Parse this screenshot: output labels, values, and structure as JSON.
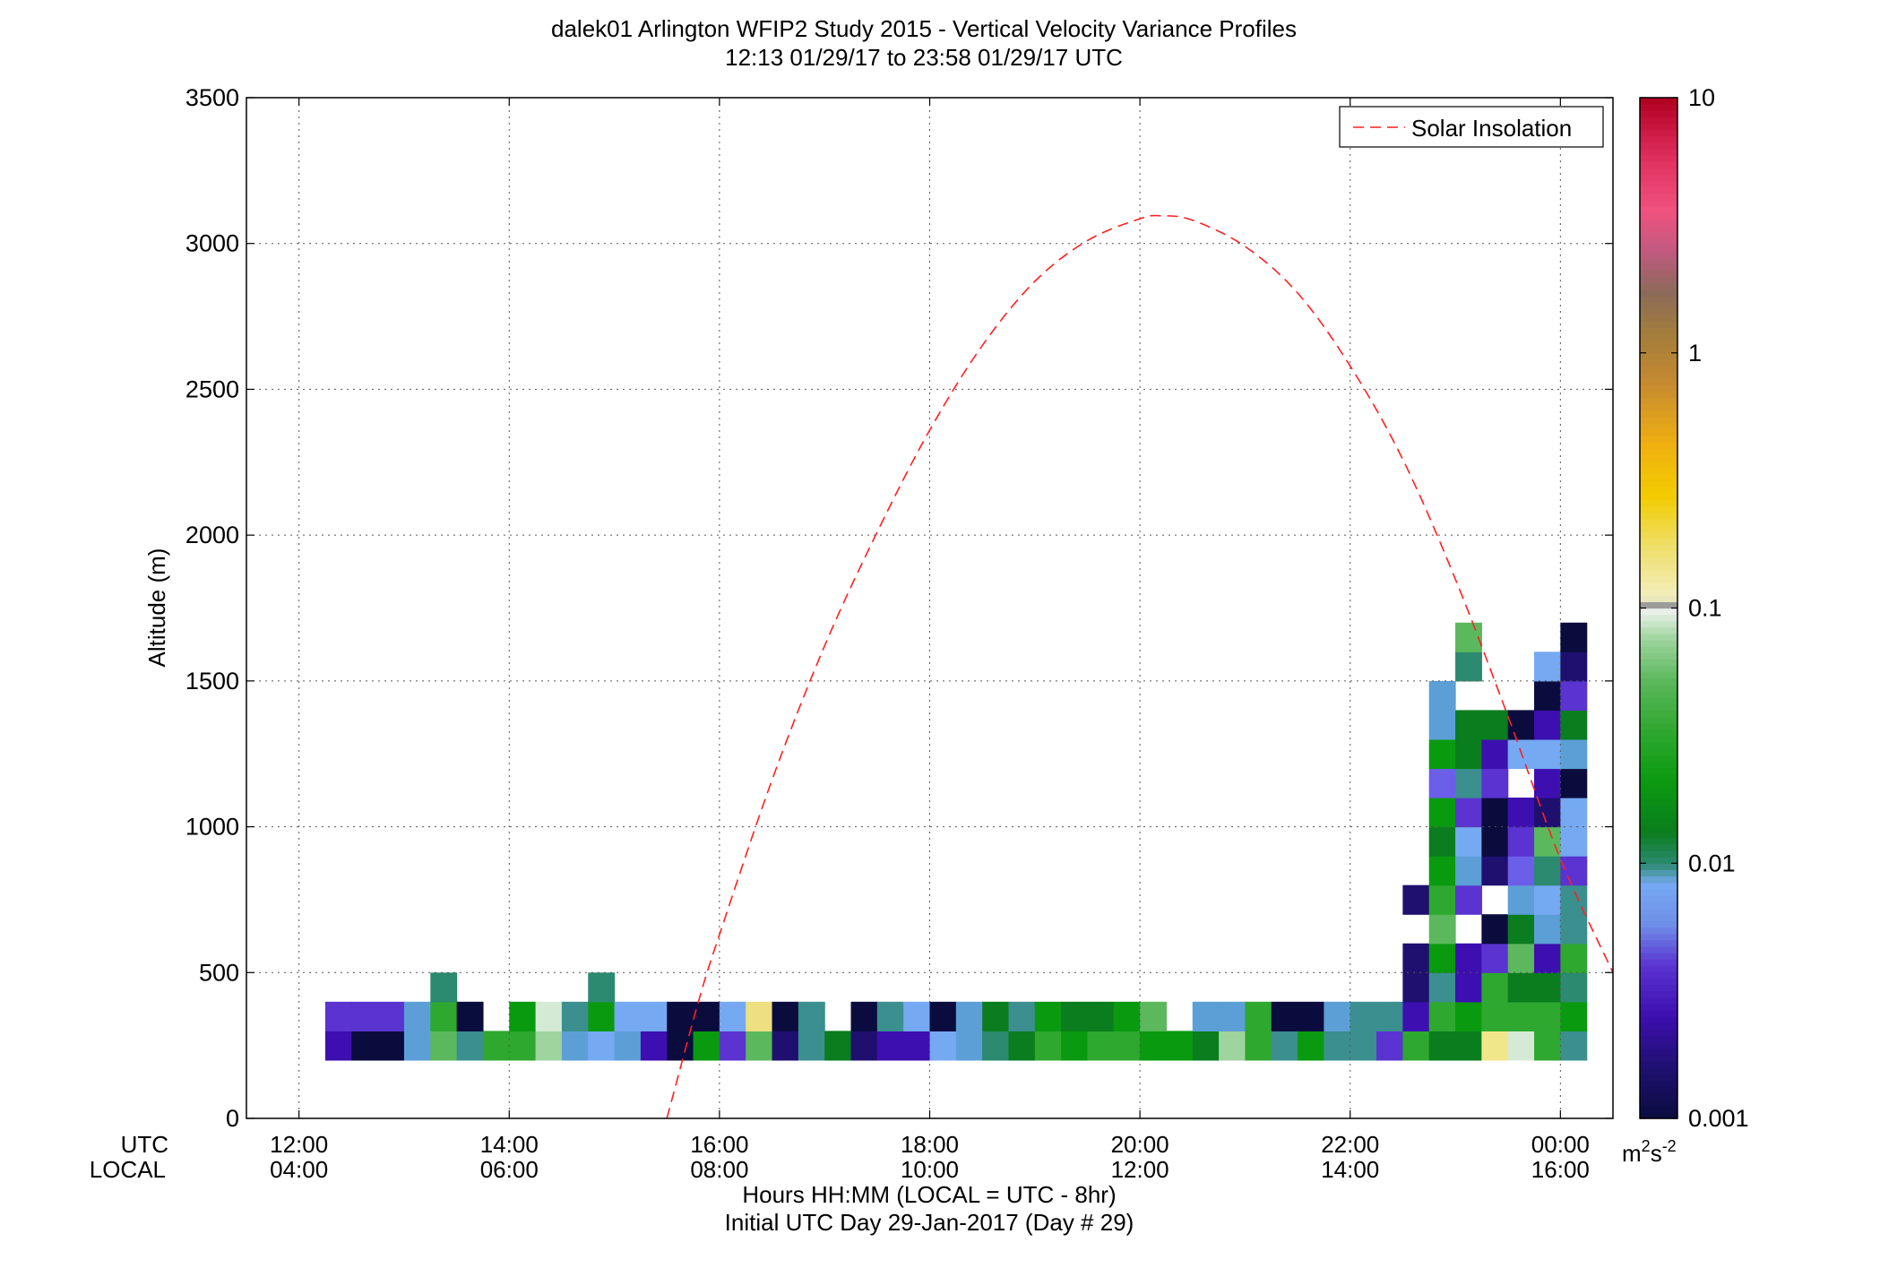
{
  "chart_data": {
    "type": "heatmap",
    "title": "dalek01 Arlington WFIP2 Study 2015 - Vertical Velocity Variance Profiles",
    "subtitle": "12:13 01/29/17 to 23:58 01/29/17  UTC",
    "ylabel": "Altitude (m)",
    "xlabel": "Hours HH:MM  (LOCAL = UTC - 8hr)",
    "xlabel2": "Initial UTC Day 29-Jan-2017 (Day # 29)",
    "xaxis_label_utc": "UTC",
    "xaxis_label_local": "LOCAL",
    "xlim_hours": [
      11.5,
      24.5
    ],
    "ylim": [
      0,
      3500
    ],
    "yticks": [
      "0",
      "500",
      "1000",
      "1500",
      "2000",
      "2500",
      "3000",
      "3500"
    ],
    "ytick_values": [
      0,
      500,
      1000,
      1500,
      2000,
      2500,
      3000,
      3500
    ],
    "xticks_utc": [
      "12:00",
      "14:00",
      "16:00",
      "18:00",
      "20:00",
      "22:00",
      "00:00"
    ],
    "xticks_local": [
      "04:00",
      "06:00",
      "08:00",
      "10:00",
      "12:00",
      "14:00",
      "16:00"
    ],
    "xtick_hours": [
      12,
      14,
      16,
      18,
      20,
      22,
      24
    ],
    "grid": true,
    "legend": {
      "position": "top-right",
      "entries": [
        "Solar Insolation"
      ]
    },
    "colorbar": {
      "scale": "log",
      "range": [
        0.001,
        10
      ],
      "ticks": [
        "0.001",
        "0.01",
        "0.1",
        "1",
        "10"
      ],
      "tick_values": [
        0.001,
        0.01,
        0.1,
        1,
        10
      ],
      "units": "m²s⁻²",
      "units_base": "m",
      "units_sup1": "2",
      "units_mid": "s",
      "units_sup2": "-2"
    },
    "cell_width_hours": 0.25,
    "cell_height_m": 100,
    "columns_start_hours": 12.25,
    "rows_start_m": 200,
    "grid_rows_bottom_up": [
      [
        "003",
        "001",
        "001",
        "008",
        "040",
        "012",
        "030",
        "030",
        "060",
        "008",
        "006",
        "008",
        "003",
        "001",
        "020",
        "004",
        "040",
        "002",
        "012",
        "015",
        "002",
        "003",
        "003",
        "006",
        "008",
        "010",
        "015",
        "030",
        "020",
        "030",
        "030",
        "020",
        "020",
        "015",
        "060",
        "030",
        "012",
        "020",
        "012",
        "012",
        "004",
        "030",
        "015",
        "015",
        "140",
        "080",
        "030",
        "012"
      ],
      [
        "004",
        "004",
        "004",
        "008",
        "030",
        "001",
        "",
        "020",
        "080",
        "012",
        "020",
        "006",
        "006",
        "001",
        "001",
        "006",
        "120",
        "001",
        "012",
        "",
        "001",
        "012",
        "006",
        "001",
        "008",
        "015",
        "012",
        "020",
        "015",
        "015",
        "020",
        "040",
        "",
        "008",
        "008",
        "030",
        "001",
        "001",
        "008",
        "012",
        "012",
        "003",
        "030",
        "020",
        "030",
        "030",
        "030",
        "020"
      ],
      [
        "",
        "",
        "",
        "",
        "010",
        "",
        "",
        "",
        "",
        "",
        "010",
        "",
        "",
        "",
        "",
        "",
        "",
        "",
        "",
        "",
        "",
        "",
        "",
        "",
        "",
        "",
        "",
        "",
        "",
        "",
        "",
        "",
        "",
        "",
        "",
        "",
        "",
        "",
        "",
        "",
        "",
        "002",
        "012",
        "003",
        "030",
        "015",
        "015",
        "010"
      ],
      [
        "",
        "",
        "",
        "",
        "",
        "",
        "",
        "",
        "",
        "",
        "",
        "",
        "",
        "",
        "",
        "",
        "",
        "",
        "",
        "",
        "",
        "",
        "",
        "",
        "",
        "",
        "",
        "",
        "",
        "",
        "",
        "",
        "",
        "",
        "",
        "",
        "",
        "",
        "",
        "",
        "",
        "002",
        "020",
        "003",
        "004",
        "040",
        "003",
        "030"
      ],
      [
        "",
        "",
        "",
        "",
        "",
        "",
        "",
        "",
        "",
        "",
        "",
        "",
        "",
        "",
        "",
        "",
        "",
        "",
        "",
        "",
        "",
        "",
        "",
        "",
        "",
        "",
        "",
        "",
        "",
        "",
        "",
        "",
        "",
        "",
        "",
        "",
        "",
        "",
        "",
        "",
        "",
        "",
        "040",
        "",
        "001",
        "015",
        "008",
        "012"
      ],
      [
        "",
        "",
        "",
        "",
        "",
        "",
        "",
        "",
        "",
        "",
        "",
        "",
        "",
        "",
        "",
        "",
        "",
        "",
        "",
        "",
        "",
        "",
        "",
        "",
        "",
        "",
        "",
        "",
        "",
        "",
        "",
        "",
        "",
        "",
        "",
        "",
        "",
        "",
        "",
        "",
        "",
        "002",
        "030",
        "004",
        "",
        "008",
        "006",
        "012"
      ],
      [
        "",
        "",
        "",
        "",
        "",
        "",
        "",
        "",
        "",
        "",
        "",
        "",
        "",
        "",
        "",
        "",
        "",
        "",
        "",
        "",
        "",
        "",
        "",
        "",
        "",
        "",
        "",
        "",
        "",
        "",
        "",
        "",
        "",
        "",
        "",
        "",
        "",
        "",
        "",
        "",
        "",
        "",
        "020",
        "008",
        "002",
        "005",
        "010",
        "004"
      ],
      [
        "",
        "",
        "",
        "",
        "",
        "",
        "",
        "",
        "",
        "",
        "",
        "",
        "",
        "",
        "",
        "",
        "",
        "",
        "",
        "",
        "",
        "",
        "",
        "",
        "",
        "",
        "",
        "",
        "",
        "",
        "",
        "",
        "",
        "",
        "",
        "",
        "",
        "",
        "",
        "",
        "",
        "",
        "015",
        "006",
        "001",
        "004",
        "040",
        "006"
      ],
      [
        "",
        "",
        "",
        "",
        "",
        "",
        "",
        "",
        "",
        "",
        "",
        "",
        "",
        "",
        "",
        "",
        "",
        "",
        "",
        "",
        "",
        "",
        "",
        "",
        "",
        "",
        "",
        "",
        "",
        "",
        "",
        "",
        "",
        "",
        "",
        "",
        "",
        "",
        "",
        "",
        "",
        "",
        "020",
        "004",
        "001",
        "003",
        "002",
        "006"
      ],
      [
        "",
        "",
        "",
        "",
        "",
        "",
        "",
        "",
        "",
        "",
        "",
        "",
        "",
        "",
        "",
        "",
        "",
        "",
        "",
        "",
        "",
        "",
        "",
        "",
        "",
        "",
        "",
        "",
        "",
        "",
        "",
        "",
        "",
        "",
        "",
        "",
        "",
        "",
        "",
        "",
        "",
        "",
        "005",
        "012",
        "004",
        "",
        "003",
        "001"
      ],
      [
        "",
        "",
        "",
        "",
        "",
        "",
        "",
        "",
        "",
        "",
        "",
        "",
        "",
        "",
        "",
        "",
        "",
        "",
        "",
        "",
        "",
        "",
        "",
        "",
        "",
        "",
        "",
        "",
        "",
        "",
        "",
        "",
        "",
        "",
        "",
        "",
        "",
        "",
        "",
        "",
        "",
        "",
        "020",
        "015",
        "003",
        "006",
        "006",
        "008"
      ],
      [
        "",
        "",
        "",
        "",
        "",
        "",
        "",
        "",
        "",
        "",
        "",
        "",
        "",
        "",
        "",
        "",
        "",
        "",
        "",
        "",
        "",
        "",
        "",
        "",
        "",
        "",
        "",
        "",
        "",
        "",
        "",
        "",
        "",
        "",
        "",
        "",
        "",
        "",
        "",
        "",
        "",
        "",
        "008",
        "015",
        "015",
        "001",
        "003",
        "015"
      ],
      [
        "",
        "",
        "",
        "",
        "",
        "",
        "",
        "",
        "",
        "",
        "",
        "",
        "",
        "",
        "",
        "",
        "",
        "",
        "",
        "",
        "",
        "",
        "",
        "",
        "",
        "",
        "",
        "",
        "",
        "",
        "",
        "",
        "",
        "",
        "",
        "",
        "",
        "",
        "",
        "",
        "",
        "",
        "008",
        "",
        "",
        "",
        "001",
        "004"
      ],
      [
        "",
        "",
        "",
        "",
        "",
        "",
        "",
        "",
        "",
        "",
        "",
        "",
        "",
        "",
        "",
        "",
        "",
        "",
        "",
        "",
        "",
        "",
        "",
        "",
        "",
        "",
        "",
        "",
        "",
        "",
        "",
        "",
        "",
        "",
        "",
        "",
        "",
        "",
        "",
        "",
        "",
        "",
        "",
        "010",
        "",
        "",
        "006",
        "002"
      ],
      [
        "",
        "",
        "",
        "",
        "",
        "",
        "",
        "",
        "",
        "",
        "",
        "",
        "",
        "",
        "",
        "",
        "",
        "",
        "",
        "",
        "",
        "",
        "",
        "",
        "",
        "",
        "",
        "",
        "",
        "",
        "",
        "",
        "",
        "",
        "",
        "",
        "",
        "",
        "",
        "",
        "",
        "",
        "",
        "040",
        "",
        "",
        "",
        "001"
      ]
    ],
    "series": [
      {
        "name": "Solar Insolation",
        "style": "dashed",
        "color": "#ff2020",
        "x_hours": [
          15.5,
          15.8,
          16.0,
          16.5,
          17.0,
          17.5,
          18.0,
          18.5,
          19.0,
          19.5,
          20.0,
          20.2,
          20.5,
          21.0,
          21.5,
          22.0,
          22.5,
          23.0,
          23.5,
          24.0,
          24.5
        ],
        "y": [
          0,
          400,
          630,
          1160,
          1620,
          2010,
          2360,
          2650,
          2870,
          3010,
          3085,
          3095,
          3080,
          2990,
          2830,
          2580,
          2260,
          1850,
          1380,
          890,
          500
        ]
      }
    ]
  },
  "colors": {
    "solar_line": "#ff2020",
    "grid": "#555555",
    "value_colormap": {
      "001": "#0b0c3e",
      "002": "#1f1070",
      "003": "#3d0fb0",
      "004": "#5a33d1",
      "005": "#6b5ee8",
      "006": "#75a9f2",
      "008": "#5c9fd6",
      "010": "#2b8a6f",
      "012": "#3b8f8f",
      "015": "#0a7d1e",
      "020": "#0a9a10",
      "030": "#2fa82f",
      "040": "#5cb85c",
      "060": "#9ed49e",
      "080": "#d5ead5",
      "120": "#eedf80",
      "140": "#f2e68a",
      "250": "#f2bf00",
      "500": "#c9a050",
      "gray": "#b9b9b9"
    }
  }
}
